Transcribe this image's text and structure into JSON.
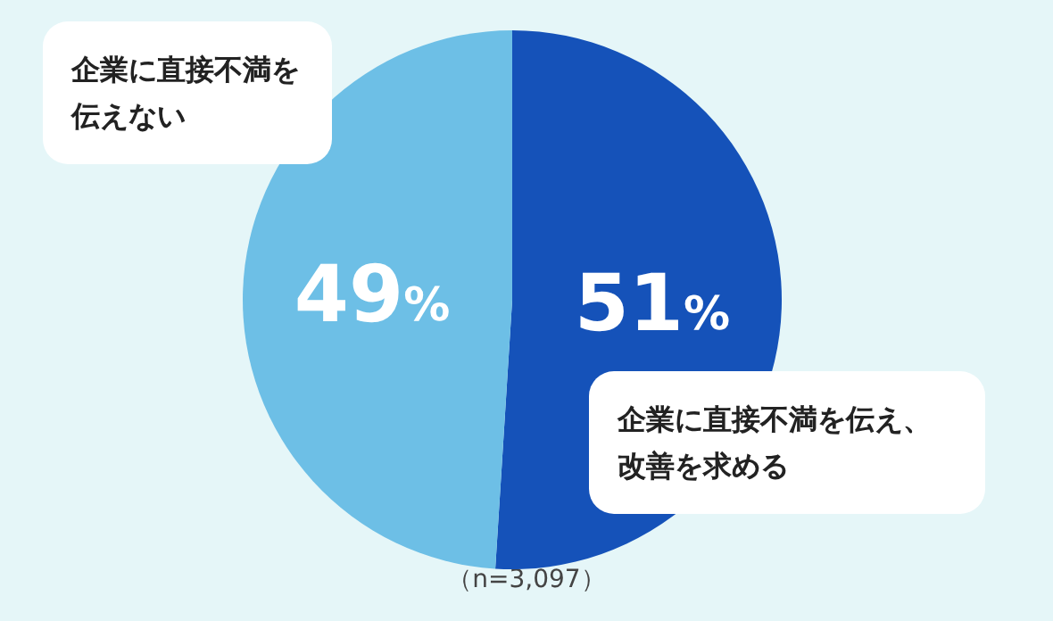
{
  "chart_data": {
    "type": "pie",
    "categories": [
      "企業に直接不満を伝え、改善を求める",
      "企業に直接不満を伝えない"
    ],
    "values": [
      51,
      49
    ],
    "colors": [
      "#1552b9",
      "#6dbfe6"
    ],
    "value_labels": [
      "51%",
      "49%"
    ],
    "annotations": [
      "（n=3,097）"
    ]
  }
}
